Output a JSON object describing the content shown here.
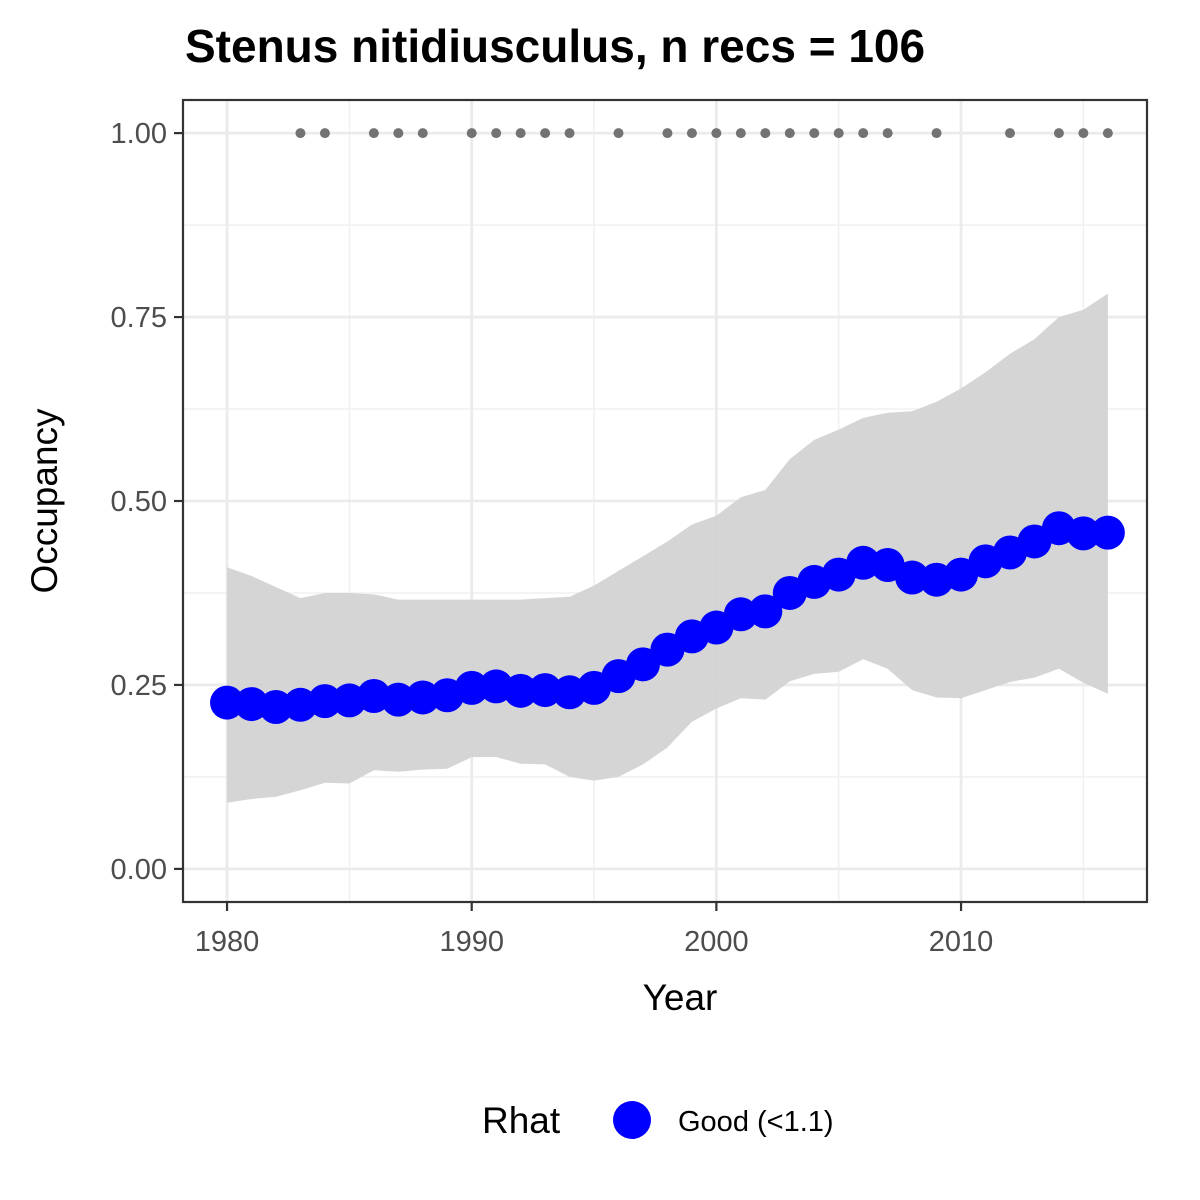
{
  "chart_data": {
    "type": "line",
    "title": "Stenus nitidiusculus, n recs = 106",
    "xlabel": "Year",
    "ylabel": "Occupancy",
    "xlim": [
      1978.2,
      2017.6
    ],
    "ylim": [
      -0.045,
      1.045
    ],
    "x_ticks": [
      1980,
      1990,
      2000,
      2010
    ],
    "y_ticks": [
      0.0,
      0.25,
      0.5,
      0.75,
      1.0
    ],
    "y_tick_labels": [
      "0.00",
      "0.25",
      "0.50",
      "0.75",
      "1.00"
    ],
    "grid": true,
    "legend": {
      "title": "Rhat",
      "placement": "bottom",
      "entries": [
        {
          "label": "Good (<1.1)",
          "color": "#0000ff"
        }
      ]
    },
    "series": [
      {
        "name": "Good (<1.1)",
        "color": "#0000ff",
        "x": [
          1980,
          1981,
          1982,
          1983,
          1984,
          1985,
          1986,
          1987,
          1988,
          1989,
          1990,
          1991,
          1992,
          1993,
          1994,
          1995,
          1996,
          1997,
          1998,
          1999,
          2000,
          2001,
          2002,
          2003,
          2004,
          2005,
          2006,
          2007,
          2008,
          2009,
          2010,
          2011,
          2012,
          2013,
          2014,
          2015,
          2016
        ],
        "y": [
          0.226,
          0.224,
          0.22,
          0.223,
          0.228,
          0.229,
          0.235,
          0.23,
          0.233,
          0.236,
          0.246,
          0.248,
          0.242,
          0.243,
          0.24,
          0.246,
          0.262,
          0.278,
          0.298,
          0.316,
          0.328,
          0.346,
          0.35,
          0.375,
          0.39,
          0.4,
          0.416,
          0.413,
          0.396,
          0.393,
          0.4,
          0.418,
          0.43,
          0.445,
          0.463,
          0.456,
          0.457
        ]
      }
    ],
    "ribbon": {
      "color": "#d3d3d3",
      "x": [
        1980,
        1981,
        1982,
        1983,
        1984,
        1985,
        1986,
        1987,
        1988,
        1989,
        1990,
        1991,
        1992,
        1993,
        1994,
        1995,
        1996,
        1997,
        1998,
        1999,
        2000,
        2001,
        2002,
        2003,
        2004,
        2005,
        2006,
        2007,
        2008,
        2009,
        2010,
        2011,
        2012,
        2013,
        2014,
        2015,
        2016
      ],
      "lower": [
        0.09,
        0.095,
        0.098,
        0.107,
        0.117,
        0.116,
        0.134,
        0.132,
        0.135,
        0.136,
        0.152,
        0.152,
        0.143,
        0.142,
        0.125,
        0.12,
        0.125,
        0.142,
        0.165,
        0.2,
        0.218,
        0.232,
        0.23,
        0.255,
        0.265,
        0.268,
        0.285,
        0.272,
        0.243,
        0.233,
        0.232,
        0.243,
        0.254,
        0.26,
        0.272,
        0.253,
        0.238
      ],
      "upper": [
        0.41,
        0.398,
        0.383,
        0.368,
        0.375,
        0.375,
        0.373,
        0.366,
        0.366,
        0.366,
        0.366,
        0.366,
        0.366,
        0.368,
        0.37,
        0.385,
        0.405,
        0.425,
        0.445,
        0.468,
        0.48,
        0.505,
        0.515,
        0.557,
        0.583,
        0.597,
        0.613,
        0.62,
        0.622,
        0.635,
        0.653,
        0.675,
        0.7,
        0.72,
        0.75,
        0.76,
        0.782
      ]
    },
    "records": {
      "color": "#737373",
      "y": 1.0,
      "x": [
        1983,
        1984,
        1986,
        1987,
        1988,
        1990,
        1991,
        1992,
        1993,
        1994,
        1996,
        1998,
        1999,
        2000,
        2001,
        2002,
        2003,
        2004,
        2005,
        2006,
        2007,
        2009,
        2012,
        2014,
        2015,
        2016
      ]
    }
  }
}
